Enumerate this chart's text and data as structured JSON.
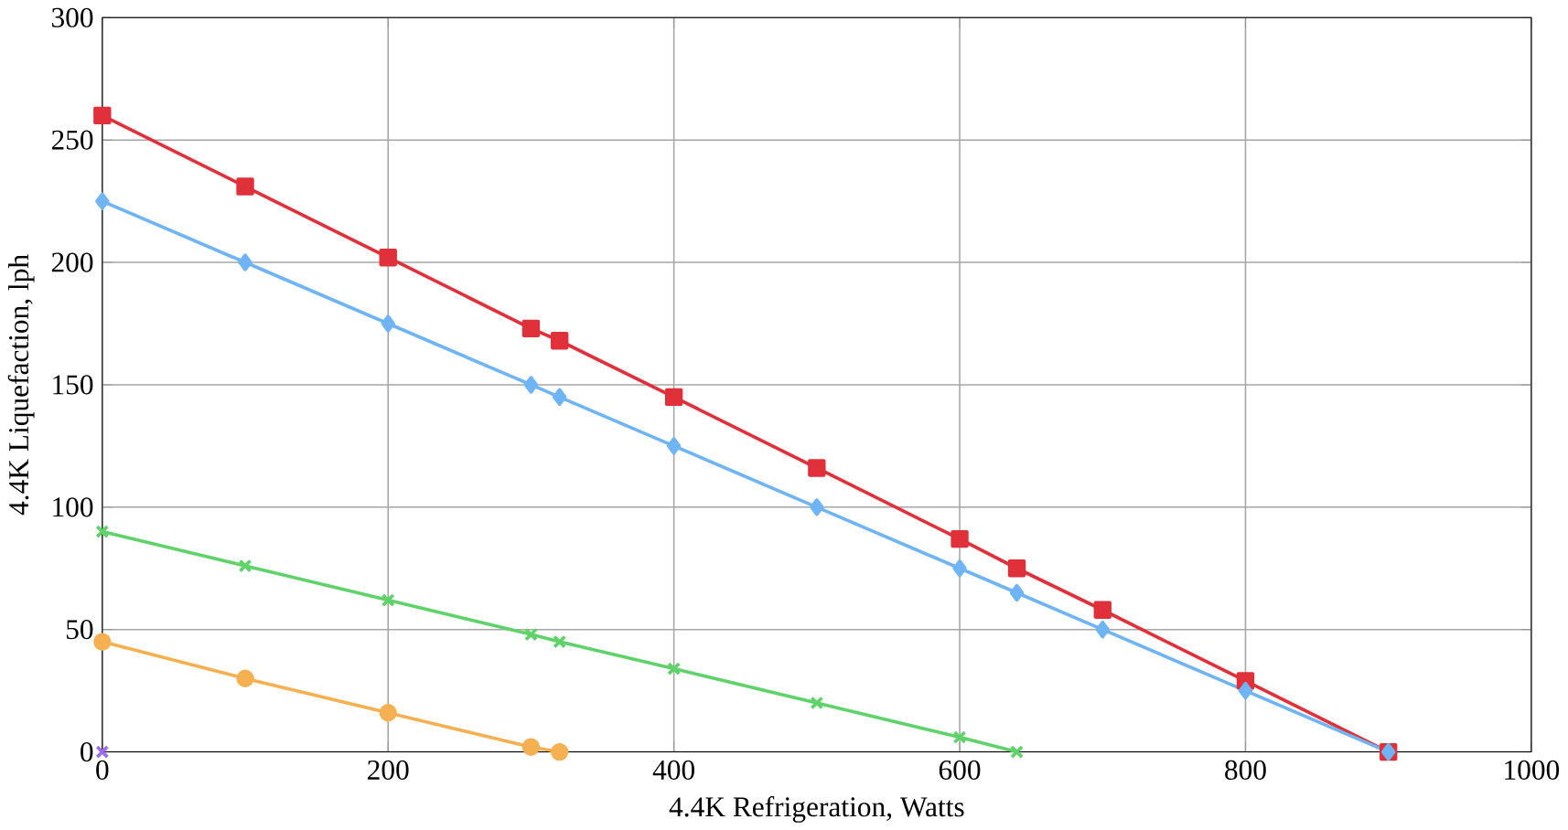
{
  "chart_data": {
    "type": "line",
    "xlabel": "4.4K Refrigeration, Watts",
    "ylabel": "4.4K Liquefaction, lph",
    "xlim": [
      0,
      1000
    ],
    "xticks": [
      0,
      200,
      400,
      600,
      800,
      1000
    ],
    "ylim": [
      0,
      300
    ],
    "yticks": [
      0,
      50,
      100,
      150,
      200,
      250,
      300
    ],
    "grid": true,
    "line_style": "solid",
    "series": [
      {
        "color": "#e0313a",
        "marker": "square",
        "x": [
          0,
          100,
          200,
          300,
          320,
          400,
          500,
          600,
          640,
          700,
          800,
          900
        ],
        "values": [
          260,
          231,
          202,
          173,
          168,
          145,
          116,
          87,
          75,
          58,
          29,
          0
        ]
      },
      {
        "color": "#6fb4f5",
        "marker": "diamond",
        "x": [
          0,
          100,
          200,
          300,
          320,
          400,
          500,
          600,
          640,
          700,
          800,
          900
        ],
        "values": [
          225,
          200,
          175,
          150,
          145,
          125,
          100,
          75,
          65,
          50,
          25,
          0
        ]
      },
      {
        "color": "#5fd36a",
        "marker": "cross",
        "x": [
          0,
          100,
          200,
          300,
          320,
          400,
          500,
          600,
          640
        ],
        "values": [
          90,
          76,
          62,
          48,
          45,
          34,
          20,
          6,
          0
        ]
      },
      {
        "color": "#f5b052",
        "marker": "circle",
        "x": [
          0,
          100,
          200,
          300,
          320
        ],
        "values": [
          45,
          30,
          16,
          2,
          0
        ]
      },
      {
        "color": "#9b6cf0",
        "marker": "cross",
        "x": [
          0
        ],
        "values": [
          0
        ]
      }
    ]
  }
}
